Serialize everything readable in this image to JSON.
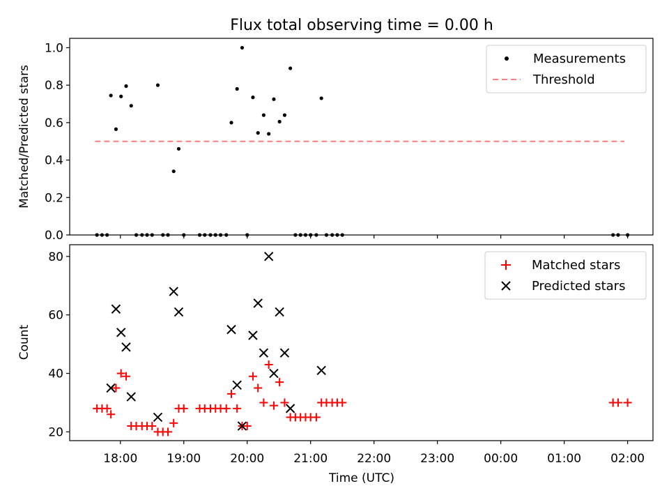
{
  "figure": {
    "title": "Flux total observing time = 0.00 h"
  },
  "chart_data": [
    {
      "type": "scatter",
      "ylabel": "Matched/Predicted stars",
      "xlabel": "",
      "xlim": [
        17.2,
        2.4
      ],
      "ylim": [
        0,
        1.05
      ],
      "yticks": [
        "0.0",
        "0.2",
        "0.4",
        "0.6",
        "0.8",
        "1.0"
      ],
      "ytick_values": [
        0,
        0.2,
        0.4,
        0.6,
        0.8,
        1.0
      ],
      "legend": [
        "Measurements",
        "Threshold"
      ],
      "legend_position": "upper-right",
      "threshold": {
        "value": 0.5,
        "x_start": 17.6,
        "x_end": 1.95,
        "color": "#ff7f7f"
      },
      "series": [
        {
          "name": "Measurements",
          "color": "#000000",
          "points": [
            [
              17.63,
              0
            ],
            [
              17.71,
              0
            ],
            [
              17.79,
              0
            ],
            [
              17.85,
              0.745
            ],
            [
              17.93,
              0.565
            ],
            [
              18.01,
              0.74
            ],
            [
              18.09,
              0.795
            ],
            [
              18.17,
              0.69
            ],
            [
              18.25,
              0
            ],
            [
              18.34,
              0
            ],
            [
              18.42,
              0
            ],
            [
              18.5,
              0
            ],
            [
              18.59,
              0.8
            ],
            [
              18.67,
              0
            ],
            [
              18.75,
              0
            ],
            [
              18.84,
              0.34
            ],
            [
              18.92,
              0.46
            ],
            [
              19.0,
              0
            ],
            [
              19.25,
              0
            ],
            [
              19.33,
              0
            ],
            [
              19.42,
              0
            ],
            [
              19.5,
              0
            ],
            [
              19.58,
              0
            ],
            [
              19.67,
              0
            ],
            [
              19.75,
              0.6
            ],
            [
              19.84,
              0.78
            ],
            [
              19.92,
              1.0
            ],
            [
              20.0,
              0
            ],
            [
              20.09,
              0.735
            ],
            [
              20.17,
              0.545
            ],
            [
              20.26,
              0.64
            ],
            [
              20.34,
              0.54
            ],
            [
              20.42,
              0.725
            ],
            [
              20.51,
              0.605
            ],
            [
              20.59,
              0.64
            ],
            [
              20.68,
              0.89
            ],
            [
              20.76,
              0
            ],
            [
              20.84,
              0
            ],
            [
              20.92,
              0
            ],
            [
              21.0,
              0
            ],
            [
              21.09,
              0
            ],
            [
              21.17,
              0.73
            ],
            [
              21.25,
              0
            ],
            [
              21.34,
              0
            ],
            [
              21.42,
              0
            ],
            [
              21.5,
              0
            ],
            [
              25.77,
              0
            ],
            [
              25.85,
              0
            ],
            [
              26.0,
              0
            ]
          ]
        }
      ]
    },
    {
      "type": "scatter",
      "ylabel": "Count",
      "xlabel": "Time (UTC)",
      "xlim": [
        17.2,
        2.4
      ],
      "ylim": [
        17,
        84
      ],
      "yticks": [
        "20",
        "40",
        "60",
        "80"
      ],
      "ytick_values": [
        20,
        40,
        60,
        80
      ],
      "xticks": [
        "18:00",
        "19:00",
        "20:00",
        "21:00",
        "22:00",
        "23:00",
        "00:00",
        "01:00",
        "02:00"
      ],
      "xtick_values": [
        18,
        19,
        20,
        21,
        22,
        23,
        24,
        25,
        26
      ],
      "legend": [
        "Matched stars",
        "Predicted stars"
      ],
      "legend_position": "upper-right",
      "series": [
        {
          "name": "Matched stars",
          "marker": "plus",
          "color": "#ff0000",
          "points": [
            [
              17.63,
              28
            ],
            [
              17.71,
              28
            ],
            [
              17.79,
              28
            ],
            [
              17.85,
              26
            ],
            [
              17.93,
              35
            ],
            [
              18.01,
              40
            ],
            [
              18.09,
              39
            ],
            [
              18.17,
              22
            ],
            [
              18.25,
              22
            ],
            [
              18.34,
              22
            ],
            [
              18.42,
              22
            ],
            [
              18.5,
              22
            ],
            [
              18.59,
              20
            ],
            [
              18.67,
              20
            ],
            [
              18.75,
              20
            ],
            [
              18.84,
              23
            ],
            [
              18.92,
              28
            ],
            [
              19.0,
              28
            ],
            [
              19.25,
              28
            ],
            [
              19.33,
              28
            ],
            [
              19.42,
              28
            ],
            [
              19.5,
              28
            ],
            [
              19.58,
              28
            ],
            [
              19.67,
              28
            ],
            [
              19.75,
              33
            ],
            [
              19.84,
              28
            ],
            [
              19.92,
              22
            ],
            [
              20.0,
              22
            ],
            [
              20.09,
              39
            ],
            [
              20.17,
              35
            ],
            [
              20.26,
              30
            ],
            [
              20.34,
              43
            ],
            [
              20.42,
              29
            ],
            [
              20.51,
              37
            ],
            [
              20.59,
              30
            ],
            [
              20.68,
              25
            ],
            [
              20.76,
              25
            ],
            [
              20.84,
              25
            ],
            [
              20.92,
              25
            ],
            [
              21.0,
              25
            ],
            [
              21.09,
              25
            ],
            [
              21.17,
              30
            ],
            [
              21.25,
              30
            ],
            [
              21.34,
              30
            ],
            [
              21.42,
              30
            ],
            [
              21.5,
              30
            ],
            [
              25.77,
              30
            ],
            [
              25.85,
              30
            ],
            [
              26.0,
              30
            ]
          ]
        },
        {
          "name": "Predicted stars",
          "marker": "x",
          "color": "#000000",
          "points": [
            [
              17.85,
              35
            ],
            [
              17.93,
              62
            ],
            [
              18.01,
              54
            ],
            [
              18.09,
              49
            ],
            [
              18.17,
              32
            ],
            [
              18.59,
              25
            ],
            [
              18.84,
              68
            ],
            [
              18.92,
              61
            ],
            [
              19.75,
              55
            ],
            [
              19.84,
              36
            ],
            [
              19.92,
              22
            ],
            [
              20.09,
              53
            ],
            [
              20.17,
              64
            ],
            [
              20.26,
              47
            ],
            [
              20.34,
              80
            ],
            [
              20.42,
              40
            ],
            [
              20.51,
              61
            ],
            [
              20.59,
              47
            ],
            [
              20.68,
              28
            ],
            [
              21.17,
              41
            ]
          ]
        }
      ]
    }
  ]
}
